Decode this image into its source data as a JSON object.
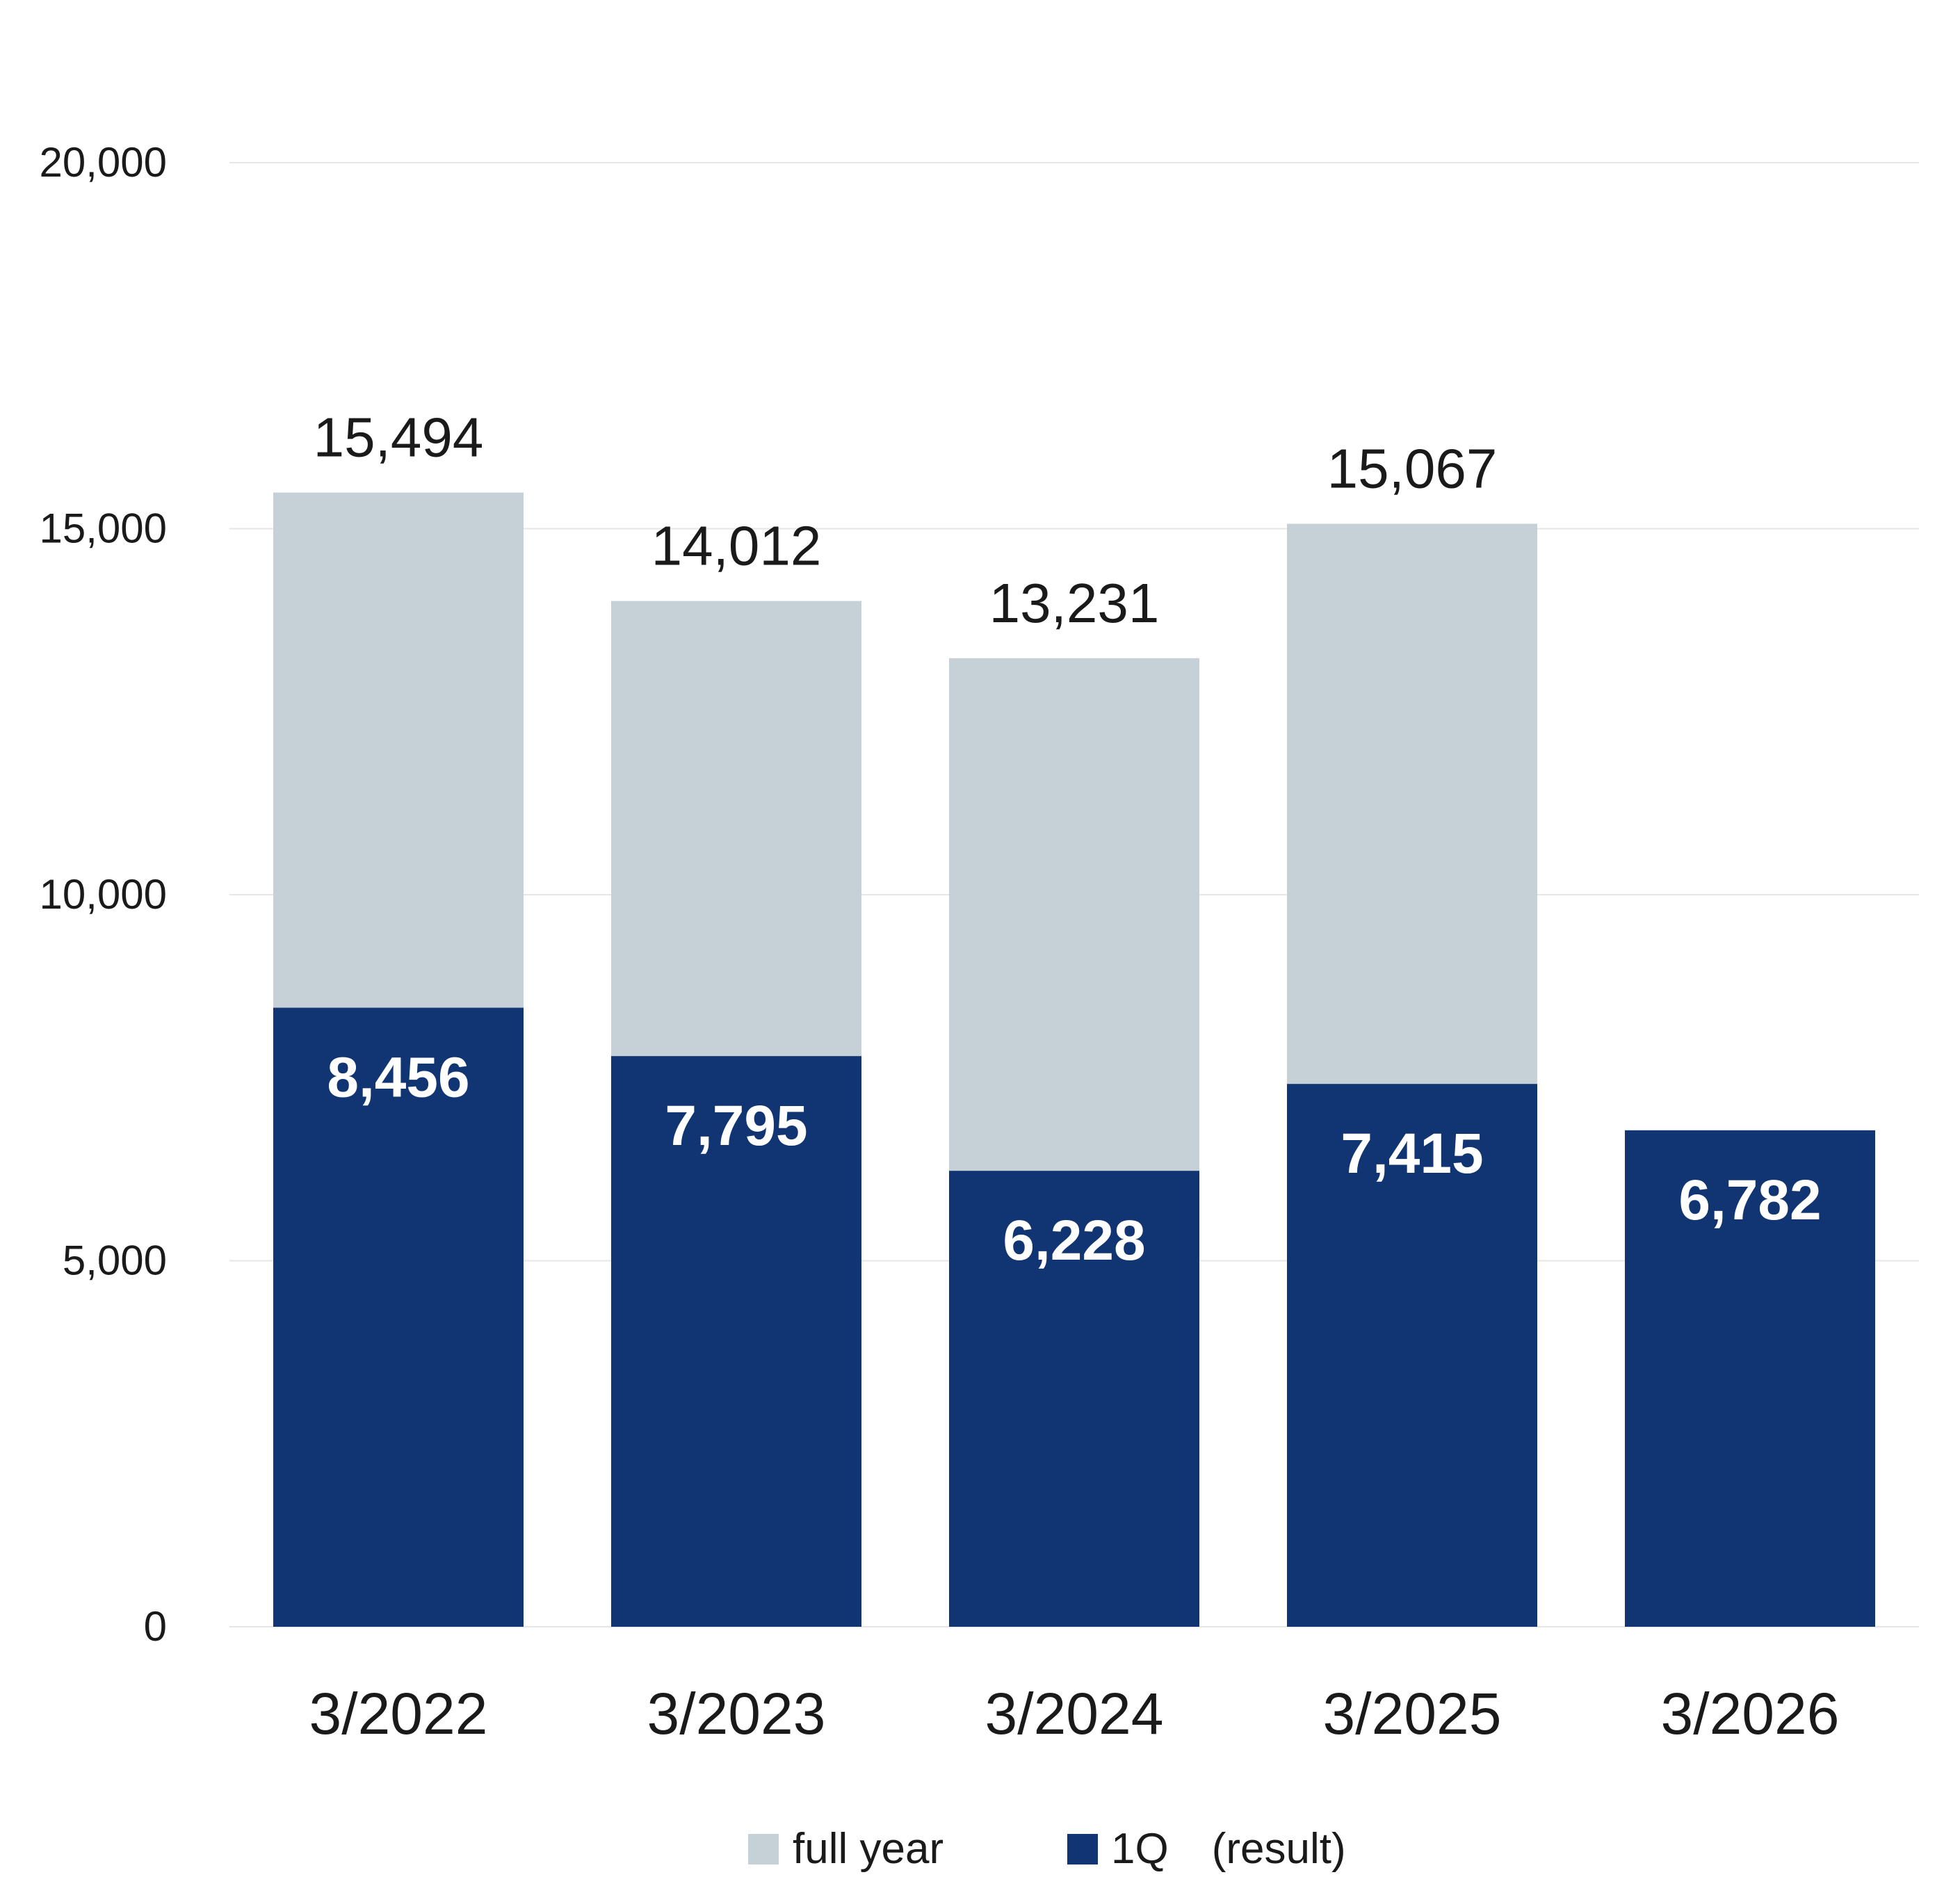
{
  "chart_data": {
    "type": "bar",
    "stacked": "overlay",
    "categories": [
      "3/2022",
      "3/2023",
      "3/2024",
      "3/2025",
      "3/2026"
    ],
    "series": [
      {
        "name": "full year",
        "values": [
          15494,
          14012,
          13231,
          15067,
          null
        ],
        "labels": [
          "15,494",
          "14,012",
          "13,231",
          "15,067",
          ""
        ],
        "color": "#c5d0d7"
      },
      {
        "name": "1Q　(result)",
        "values": [
          8456,
          7795,
          6228,
          7415,
          6782
        ],
        "labels": [
          "8,456",
          "7,795",
          "6,228",
          "7,415",
          "6,782"
        ],
        "color": "#113573"
      }
    ],
    "ylim": [
      0,
      20000
    ],
    "yticks": [
      0,
      5000,
      10000,
      15000,
      20000
    ],
    "ytick_labels": [
      "0",
      "5,000",
      "10,000",
      "15,000",
      "20,000"
    ],
    "grid": true,
    "gridline_color": "#e6e6e6",
    "legend_position": "bottom-center",
    "title": "",
    "xlabel": "",
    "ylabel": ""
  }
}
